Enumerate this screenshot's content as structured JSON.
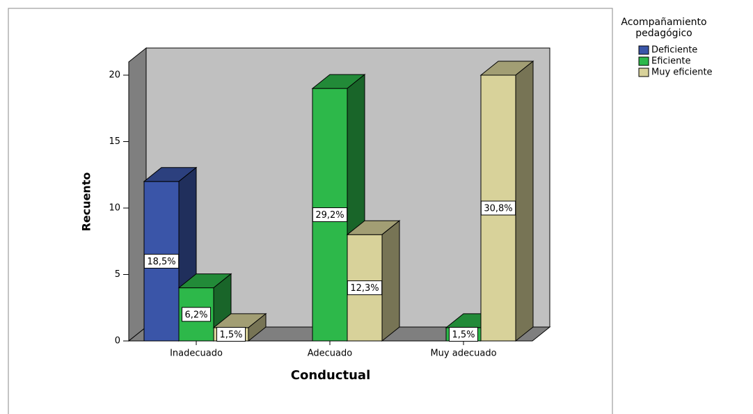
{
  "chart_data": {
    "type": "bar3d",
    "x_label": "Conductual",
    "y_label": "Recuento",
    "legend_title": "Acompañamiento pedagógico",
    "categories": [
      "Inadecuado",
      "Adecuado",
      "Muy adecuado"
    ],
    "series": [
      {
        "name": "Deficiente",
        "color": "#3a55a8",
        "values": [
          12,
          null,
          null
        ],
        "value_labels": [
          "18,5%",
          null,
          null
        ]
      },
      {
        "name": "Eficiente",
        "color": "#2db84a",
        "values": [
          4,
          19,
          1
        ],
        "value_labels": [
          "6,2%",
          "29,2%",
          "1,5%"
        ]
      },
      {
        "name": "Muy eficiente",
        "color": "#d8d29a",
        "values": [
          1,
          8,
          20
        ],
        "value_labels": [
          "1,5%",
          "12,3%",
          "30,8%"
        ]
      }
    ],
    "ylim": [
      0,
      20
    ],
    "yticks": [
      0,
      5,
      10,
      15,
      20
    ],
    "legend": "right"
  }
}
